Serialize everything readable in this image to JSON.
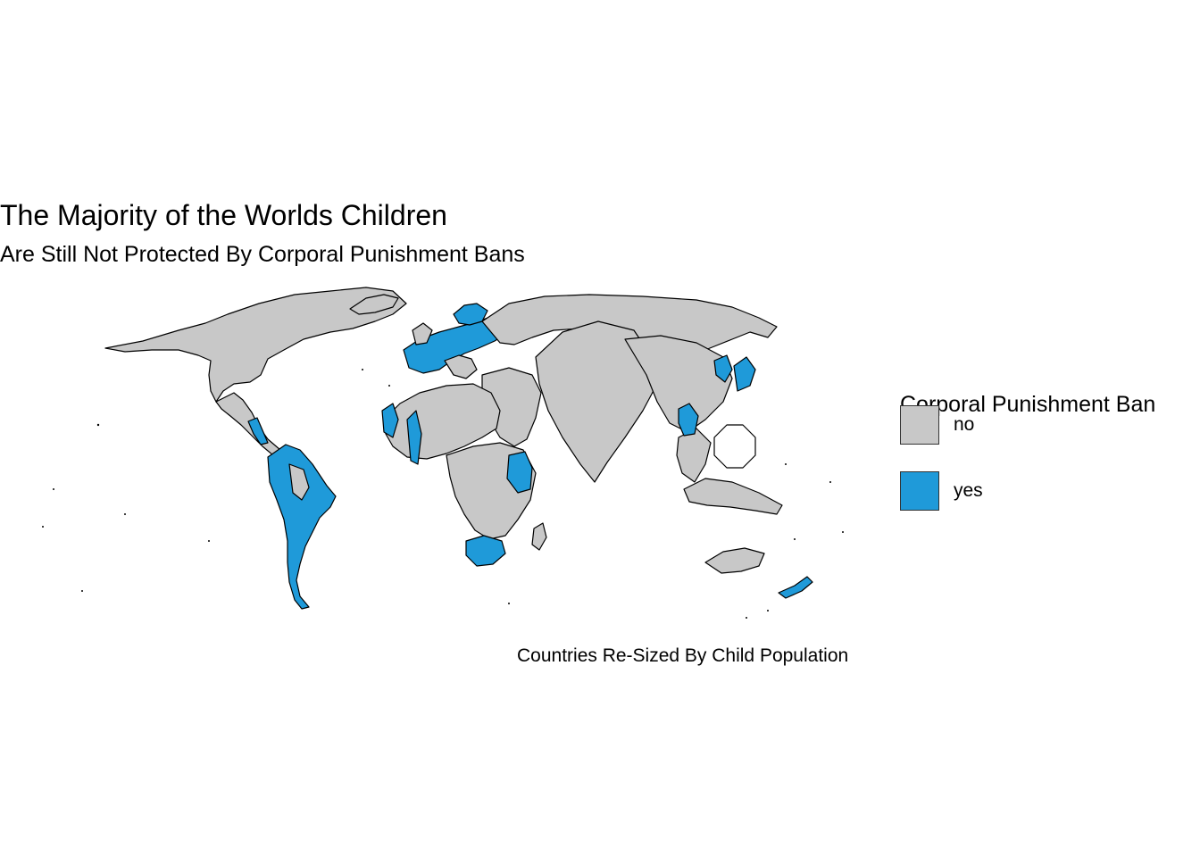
{
  "title": "The Majority of the Worlds Children",
  "subtitle": "Are Still Not Protected By Corporal Punishment Bans",
  "caption": "Countries Re-Sized By Child Population",
  "legend": {
    "title": "Corporal Punishment Ban",
    "items": [
      {
        "label": "no",
        "color": "#c8c8c8"
      },
      {
        "label": "yes",
        "color": "#1f9ad9"
      }
    ]
  },
  "colors": {
    "no": "#c8c8c8",
    "yes": "#1f9ad9",
    "border": "#000000"
  }
}
